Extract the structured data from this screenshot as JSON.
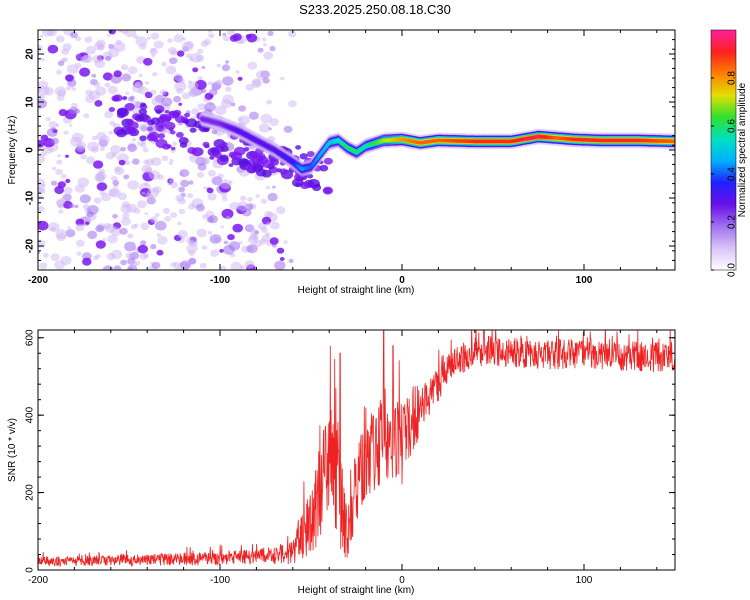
{
  "title": "S233.2025.250.08.18.C30",
  "colors": {
    "snr_line": "#ee2222",
    "blob_purple": "#7a18f0",
    "colormap": [
      "#ffffff",
      "#d9c4f7",
      "#a070f0",
      "#6a10e8",
      "#2020ff",
      "#00b0ff",
      "#00e0c0",
      "#30e030",
      "#e0e000",
      "#ff8000",
      "#ff2020",
      "#ff20a0"
    ]
  },
  "chart_data": [
    {
      "type": "heatmap",
      "title": "",
      "xlabel": "Height of straight line (km)",
      "ylabel": "Frequency (Hz)",
      "xlim": [
        -200,
        150
      ],
      "ylim": [
        -25,
        25
      ],
      "xticks": [
        -200,
        -100,
        0,
        100
      ],
      "xtick_labels": [
        "-200",
        "-100",
        "0",
        "100"
      ],
      "yticks": [
        -20,
        -10,
        0,
        10,
        20
      ],
      "ytick_labels": [
        "-20",
        "-10",
        "0",
        "10",
        "20"
      ],
      "ridge": {
        "x": [
          -110,
          -100,
          -90,
          -80,
          -70,
          -60,
          -55,
          -50,
          -45,
          -40,
          -35,
          -30,
          -25,
          -20,
          -10,
          0,
          10,
          20,
          40,
          60,
          75,
          85,
          95,
          110,
          130,
          150
        ],
        "y": [
          6.5,
          5.5,
          4,
          2,
          0,
          -2.5,
          -4,
          -3.5,
          -1,
          1.5,
          2,
          0.5,
          -0.5,
          0.8,
          2,
          2.2,
          1.5,
          2,
          1.8,
          1.8,
          2.8,
          2.5,
          2.2,
          2,
          2,
          1.8
        ],
        "amplitude": [
          0.25,
          0.25,
          0.3,
          0.3,
          0.3,
          0.35,
          0.45,
          0.4,
          0.45,
          0.5,
          0.55,
          0.6,
          0.6,
          0.55,
          0.7,
          0.8,
          0.85,
          0.85,
          0.9,
          0.9,
          0.95,
          0.85,
          0.9,
          0.9,
          0.9,
          0.85
        ]
      },
      "colorbar": {
        "label": "Normalized spectral amplitude",
        "range": [
          0.0,
          1.0
        ],
        "ticks": [
          "0.0",
          "0.2",
          "0.4",
          "0.6",
          "0.8"
        ]
      }
    },
    {
      "type": "line",
      "title": "",
      "xlabel": "Height of straight line (km)",
      "ylabel": "SNR (10 * v/v)",
      "xlim": [
        -200,
        150
      ],
      "ylim": [
        0,
        620
      ],
      "xticks": [
        -200,
        -100,
        0,
        100
      ],
      "xtick_labels": [
        "-200",
        "-100",
        "0",
        "100"
      ],
      "yticks": [
        0,
        200,
        400,
        600
      ],
      "ytick_labels": [
        "0",
        "200",
        "400",
        "600"
      ],
      "envelope": {
        "x": [
          -200,
          -150,
          -100,
          -80,
          -60,
          -50,
          -45,
          -40,
          -35,
          -30,
          -25,
          -20,
          -15,
          -10,
          -5,
          0,
          5,
          10,
          15,
          20,
          25,
          30,
          40,
          60,
          80,
          100,
          120,
          150
        ],
        "mean": [
          22,
          25,
          30,
          35,
          45,
          130,
          200,
          260,
          200,
          90,
          220,
          270,
          310,
          340,
          330,
          330,
          380,
          420,
          450,
          480,
          520,
          540,
          565,
          565,
          555,
          560,
          555,
          545
        ],
        "spread": [
          12,
          15,
          18,
          20,
          30,
          90,
          130,
          180,
          150,
          70,
          100,
          110,
          110,
          110,
          110,
          110,
          90,
          70,
          55,
          45,
          40,
          40,
          40,
          40,
          40,
          40,
          40,
          40
        ],
        "peaks": [
          {
            "x": -37,
            "y": 545
          },
          {
            "x": -34,
            "y": 560
          },
          {
            "x": -10,
            "y": 620
          },
          {
            "x": -5,
            "y": 580
          },
          {
            "x": 45,
            "y": 625
          }
        ]
      }
    }
  ]
}
